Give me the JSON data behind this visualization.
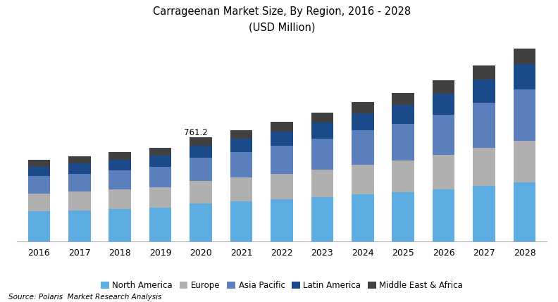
{
  "title_line1": "Carrageenan Market Size, By Region, 2016 - 2028",
  "title_line2": "(USD Million)",
  "years": [
    2016,
    2017,
    2018,
    2019,
    2020,
    2021,
    2022,
    2023,
    2024,
    2025,
    2026,
    2027,
    2028
  ],
  "annotation_year": 2020,
  "annotation_text": "761.2",
  "north_america": [
    220,
    228,
    237,
    247,
    280,
    295,
    310,
    325,
    345,
    360,
    380,
    405,
    430
  ],
  "europe": [
    130,
    136,
    142,
    150,
    160,
    170,
    185,
    200,
    215,
    230,
    250,
    275,
    305
  ],
  "asia_pacific": [
    125,
    131,
    138,
    147,
    170,
    185,
    202,
    225,
    248,
    268,
    295,
    330,
    370
  ],
  "latin_america": [
    70,
    73,
    77,
    82,
    90,
    97,
    105,
    115,
    126,
    138,
    152,
    168,
    186
  ],
  "middle_east_africa": [
    50,
    52,
    55,
    58,
    61,
    65,
    70,
    75,
    81,
    87,
    95,
    104,
    114
  ],
  "colors": {
    "north_america": "#5DADE2",
    "europe": "#B0B0B0",
    "asia_pacific": "#5B7FBD",
    "latin_america": "#1A4A8A",
    "middle_east_africa": "#404040"
  },
  "legend_labels": [
    "North America",
    "Europe",
    "Asia Pacific",
    "Latin America",
    "Middle East & Africa"
  ],
  "source_text": "Source: Polaris  Market Research Analysis",
  "background_color": "#FFFFFF",
  "bar_width": 0.55
}
